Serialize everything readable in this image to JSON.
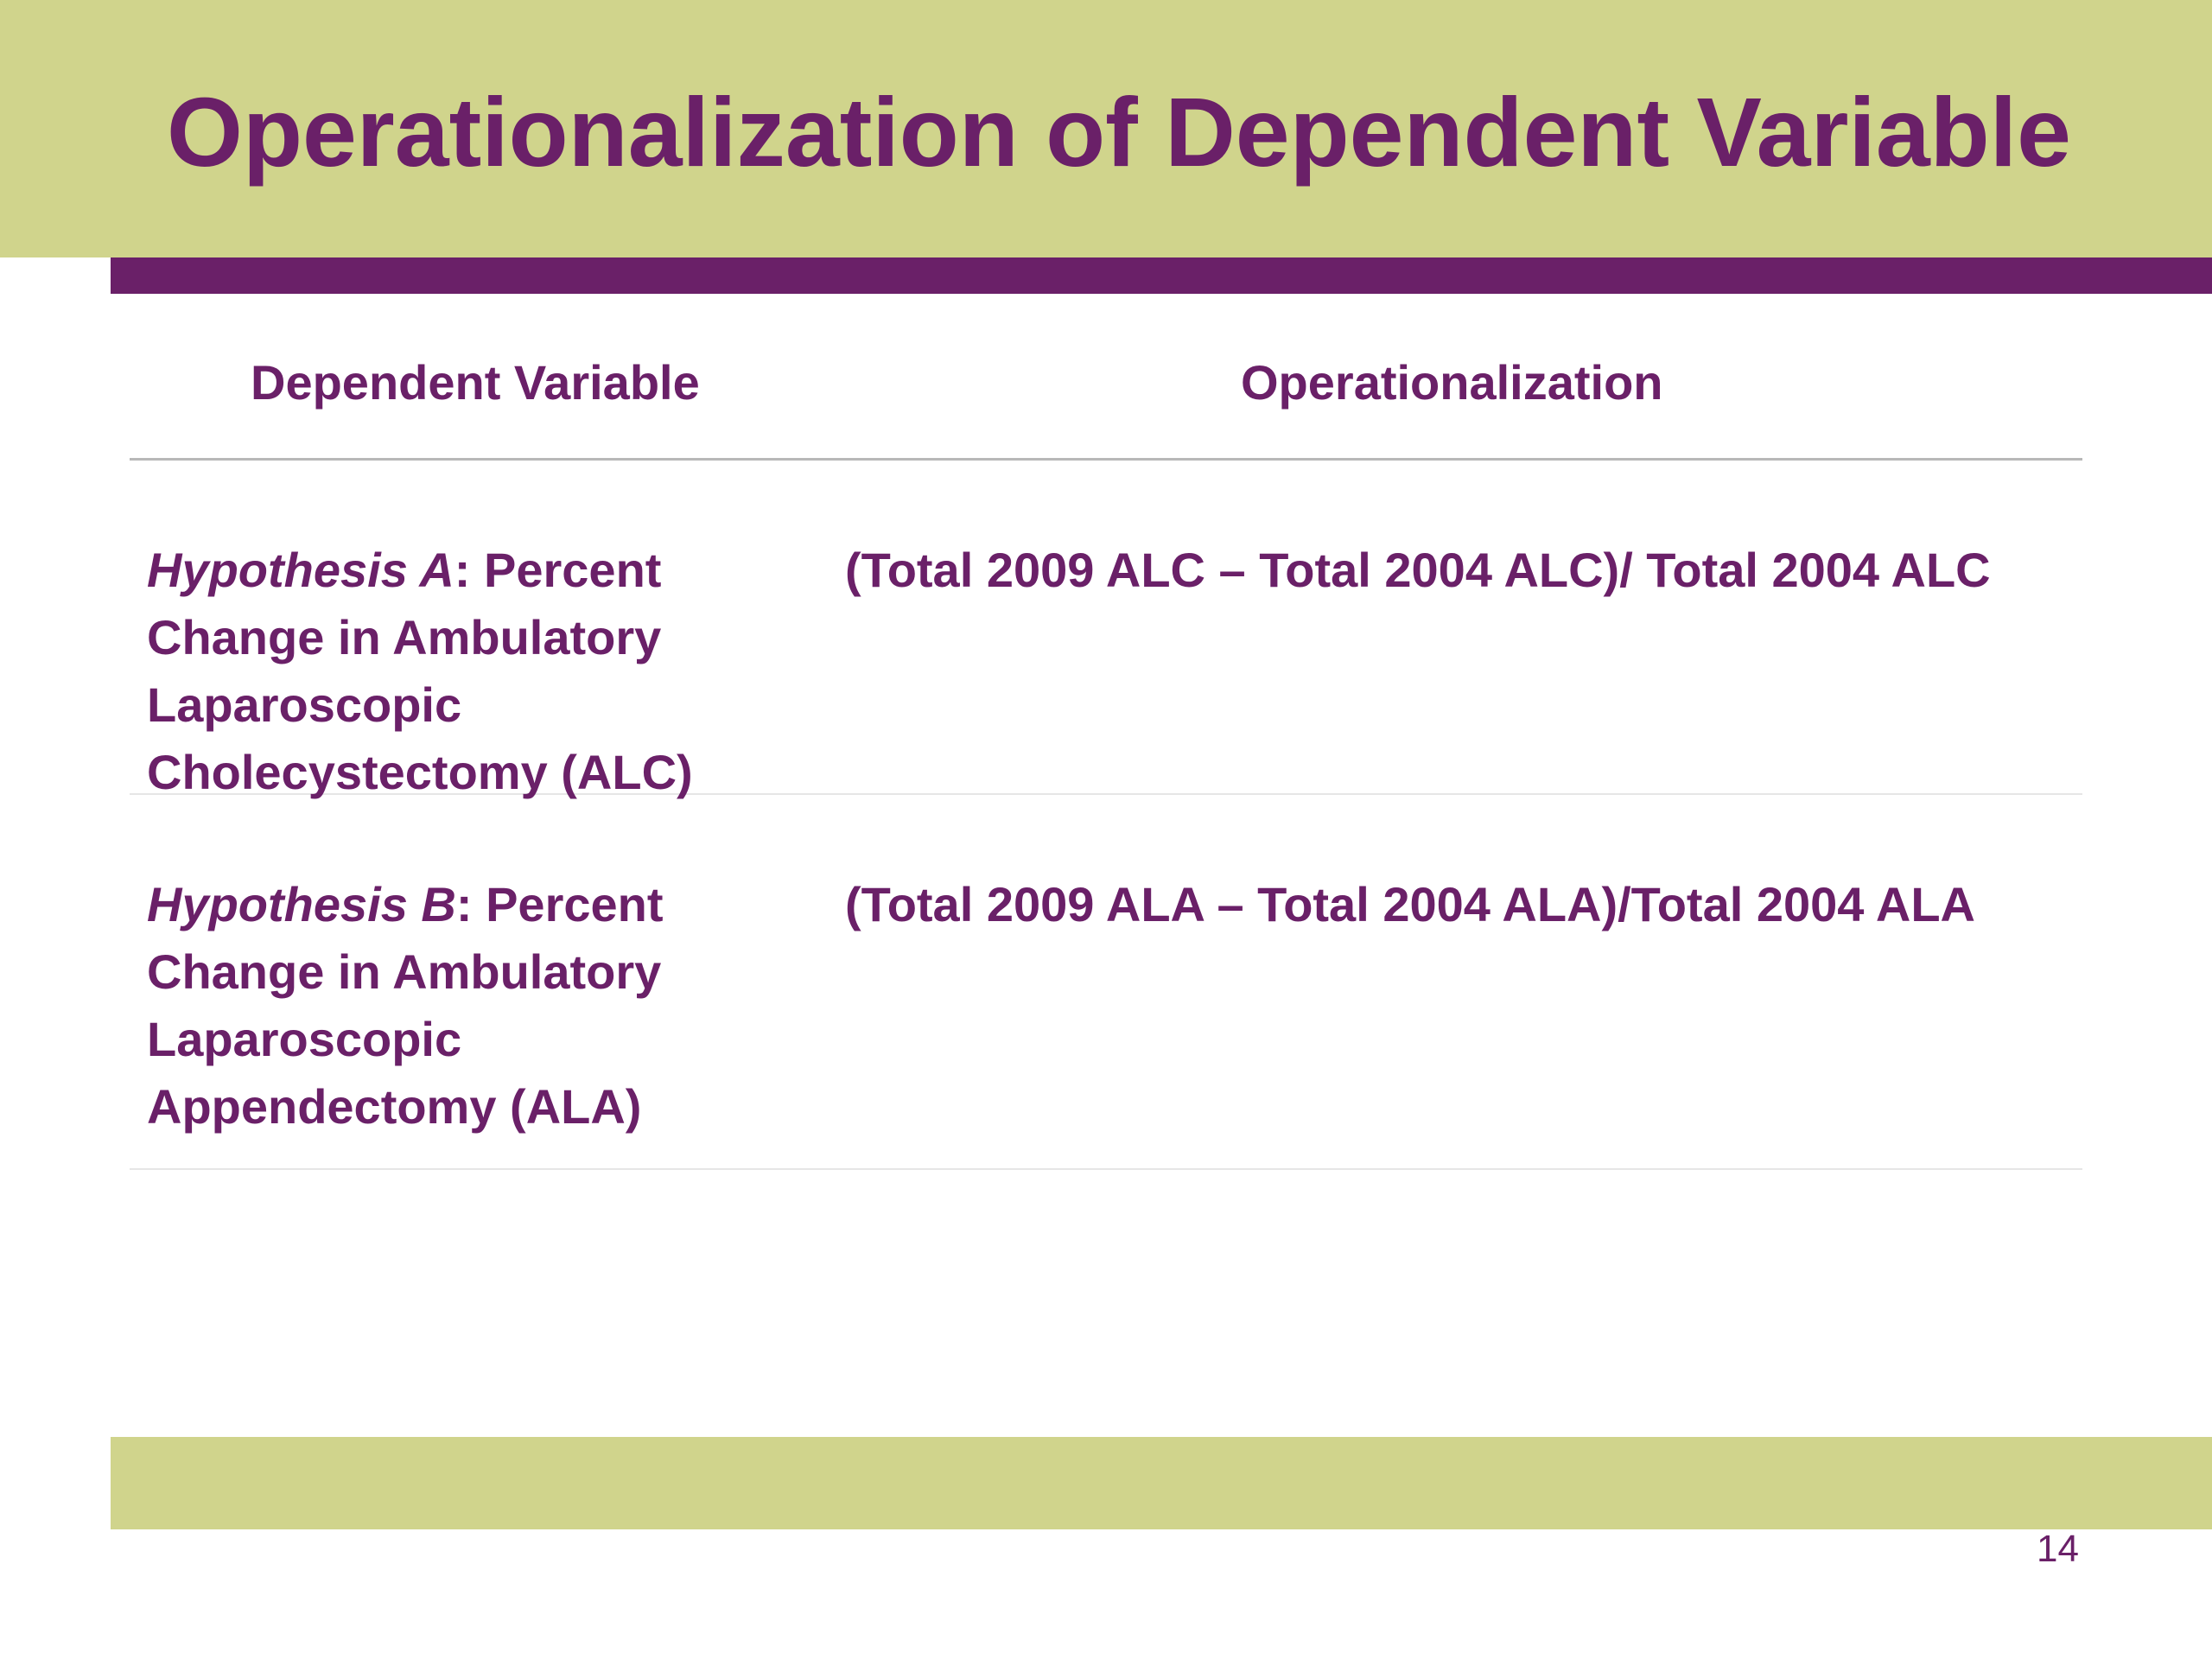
{
  "slide": {
    "title": "Operationalization of Dependent Variable",
    "page_number": "14"
  },
  "table": {
    "headers": {
      "dependent_variable": "Dependent Variable",
      "operationalization": "Operationalization"
    },
    "rows": [
      {
        "hypothesis_label": "Hypothesis A",
        "separator": ":",
        "dependent_variable_text": " Percent Change in Ambulatory Laparoscopic Cholecystectomy (ALC)",
        "operationalization": "(Total 2009 ALC – Total 2004 ALC)/ Total 2004 ALC"
      },
      {
        "hypothesis_label": "Hypothesis B",
        "separator": ":",
        "dependent_variable_text": " Percent Change in Ambulatory Laparoscopic Appendectomy (ALA)",
        "operationalization": "(Total 2009 ALA – Total 2004 ALA)/Total 2004 ALA"
      }
    ]
  },
  "colors": {
    "title_band": "#d0d48c",
    "accent_purple": "#6a2068",
    "divider_gray": "#b8b8b8"
  }
}
